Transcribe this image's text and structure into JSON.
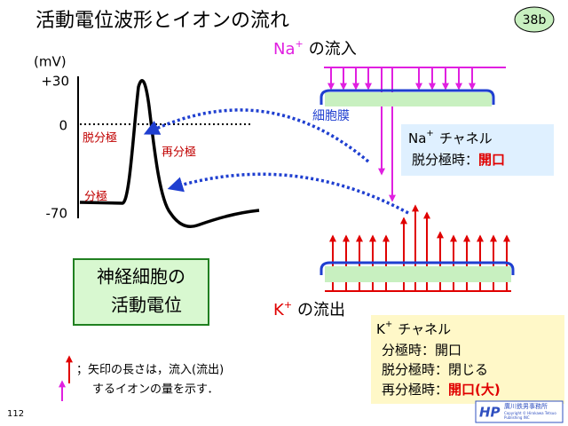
{
  "header": {
    "title": "活動電位波形とイオンの流れ",
    "badge": "38b"
  },
  "graph": {
    "unit": "(mV)",
    "ticks": [
      "+30",
      "0",
      "-70"
    ],
    "phases": [
      "脱分極",
      "再分極",
      "分極"
    ]
  },
  "na": {
    "ion": "Na",
    "charge": "+",
    "heading": "の流入",
    "membrane": "細胞膜",
    "channel": {
      "ion": "Na",
      "charge": "+",
      "name": "チャネル",
      "state": "脱分極時：",
      "open": "開口"
    }
  },
  "k": {
    "ion": "K",
    "charge": "+",
    "heading": "の流出",
    "channel": {
      "ion": "K",
      "charge": "+",
      "name": "チャネル",
      "lines": [
        "分極時：開口",
        "脱分極時：閉じる"
      ],
      "state": "再分極時：",
      "open": "開口(大)"
    }
  },
  "caption": [
    "神経細胞の",
    "活動電位"
  ],
  "note": [
    "；矢印の長さは，流入(流出)",
    "するイオンの量を示す．"
  ],
  "footer": {
    "page": "112",
    "logo": "HP",
    "publisher": "廣川鉄男事務所",
    "copyright": [
      "Copyright © Hirokawa Tetsuo",
      "Publishing INC"
    ]
  }
}
